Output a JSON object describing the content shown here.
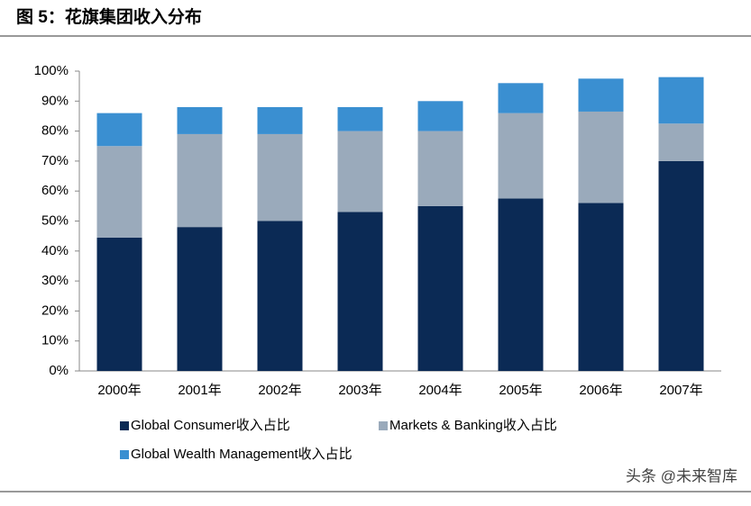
{
  "chart_data": {
    "type": "stacked_bar",
    "title": "图 5：花旗集团收入分布",
    "categories": [
      "2000年",
      "2001年",
      "2002年",
      "2003年",
      "2004年",
      "2005年",
      "2006年",
      "2007年"
    ],
    "series": [
      {
        "name": "Global Consumer收入占比",
        "color": "#0b2a55",
        "values": [
          44.5,
          48,
          50,
          53,
          55,
          57.5,
          56,
          70
        ]
      },
      {
        "name": "Markets & Banking收入占比",
        "color": "#9aaabb",
        "values": [
          30.5,
          31,
          29,
          27,
          25,
          28.5,
          30.5,
          12.5
        ]
      },
      {
        "name": "Global Wealth Management收入占比",
        "color": "#3a8fd1",
        "values": [
          11,
          9,
          9,
          8,
          10,
          10,
          11,
          15.5
        ]
      }
    ],
    "ylim": [
      0,
      100
    ],
    "yticks": [
      {
        "value": 0,
        "label": "0%"
      },
      {
        "value": 10,
        "label": "10%"
      },
      {
        "value": 20,
        "label": "20%"
      },
      {
        "value": 30,
        "label": "30%"
      },
      {
        "value": 40,
        "label": "40%"
      },
      {
        "value": 50,
        "label": "50%"
      },
      {
        "value": 60,
        "label": "60%"
      },
      {
        "value": 70,
        "label": "70%"
      },
      {
        "value": 80,
        "label": "80%"
      },
      {
        "value": 90,
        "label": "90%"
      },
      {
        "value": 100,
        "label": "100%"
      }
    ],
    "legend": "bottom"
  },
  "watermark": "头条 @未来智库"
}
